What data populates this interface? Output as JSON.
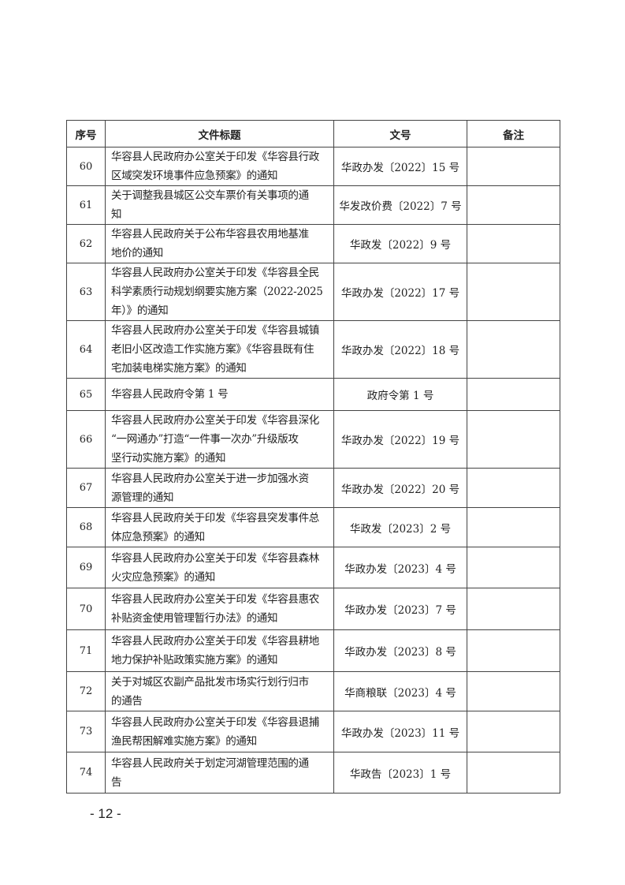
{
  "table": {
    "headers": {
      "index": "序号",
      "title": "文件标题",
      "doc_no": "文号",
      "remarks": "备注"
    },
    "rows": [
      {
        "index": "60",
        "title_lines": [
          "华容县人民政府办公室关于印发《华容县行政",
          "区域突发环境事件应急预案》的通知"
        ],
        "doc_no": "华政办发〔2022〕15 号",
        "remarks": ""
      },
      {
        "index": "61",
        "title_lines": [
          "关于调整我县城区公交车票价有关事项的通",
          "知"
        ],
        "doc_no": "华发改价费〔2022〕7 号",
        "remarks": ""
      },
      {
        "index": "62",
        "title_lines": [
          "华容县人民政府关于公布华容县农用地基准",
          "地价的通知"
        ],
        "doc_no": "华政发〔2022〕9 号",
        "remarks": ""
      },
      {
        "index": "63",
        "title_lines": [
          "华容县人民政府办公室关于印发《华容县全民",
          "科学素质行动规划纲要实施方案（2022-2025",
          "年）》的通知"
        ],
        "doc_no": "华政办发〔2022〕17 号",
        "remarks": ""
      },
      {
        "index": "64",
        "title_lines": [
          "华容县人民政府办公室关于印发《华容县城镇",
          "老旧小区改造工作实施方案》《华容县既有住",
          "宅加装电梯实施方案》的通知"
        ],
        "doc_no": "华政办发〔2022〕18 号",
        "remarks": ""
      },
      {
        "index": "65",
        "title_lines": [
          "华容县人民政府令第 1 号"
        ],
        "doc_no": "政府令第 1 号",
        "remarks": ""
      },
      {
        "index": "66",
        "title_lines": [
          "华容县人民政府办公室关于印发《华容县深化",
          "“一网通办”打造“一件事一次办”升级版攻",
          "坚行动实施方案》的通知"
        ],
        "doc_no": "华政办发〔2022〕19 号",
        "remarks": ""
      },
      {
        "index": "67",
        "title_lines": [
          "华容县人民政府办公室关于进一步加强水资",
          "源管理的通知"
        ],
        "doc_no": "华政办发〔2022〕20 号",
        "remarks": ""
      },
      {
        "index": "68",
        "title_lines": [
          "华容县人民政府关于印发《华容县突发事件总",
          "体应急预案》的通知"
        ],
        "doc_no": "华政发〔2023〕2 号",
        "remarks": ""
      },
      {
        "index": "69",
        "title_lines": [
          "华容县人民政府办公室关于印发《华容县森林",
          "火灾应急预案》的通知"
        ],
        "doc_no": "华政办发〔2023〕4 号",
        "remarks": ""
      },
      {
        "index": "70",
        "title_lines": [
          "华容县人民政府办公室关于印发《华容县惠农",
          "补贴资金使用管理暂行办法》的通知"
        ],
        "doc_no": "华政办发〔2023〕7 号",
        "remarks": ""
      },
      {
        "index": "71",
        "title_lines": [
          "华容县人民政府办公室关于印发《华容县耕地",
          "地力保护补贴政策实施方案》的通知"
        ],
        "doc_no": "华政办发〔2023〕8 号",
        "remarks": ""
      },
      {
        "index": "72",
        "title_lines": [
          "关于对城区农副产品批发市场实行划行归市",
          "的通告"
        ],
        "doc_no": "华商粮联〔2023〕4 号",
        "remarks": ""
      },
      {
        "index": "73",
        "title_lines": [
          "华容县人民政府办公室关于印发《华容县退捕",
          "渔民帮困解难实施方案》的通知"
        ],
        "doc_no": "华政办发〔2023〕11 号",
        "remarks": ""
      },
      {
        "index": "74",
        "title_lines": [
          "华容县人民政府关于划定河湖管理范围的通",
          "告"
        ],
        "doc_no": "华政告〔2023〕1 号",
        "remarks": ""
      }
    ]
  },
  "footer": {
    "page_number": "- 12 -"
  }
}
